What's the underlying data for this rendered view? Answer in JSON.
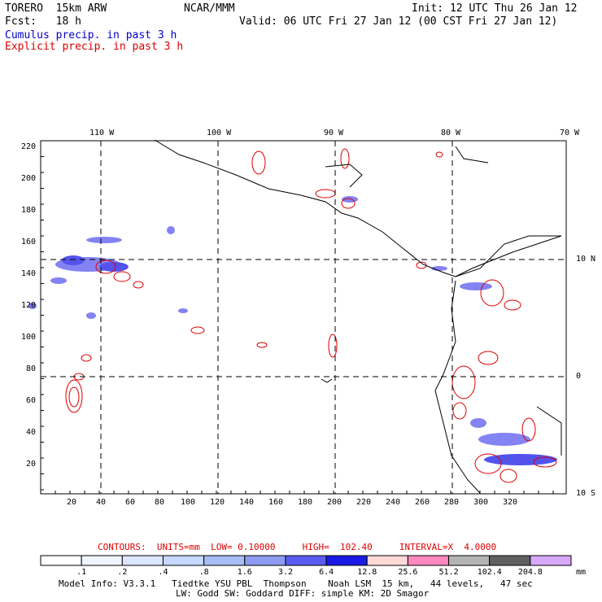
{
  "header": {
    "model": "TORERO  15km ARW",
    "org": "NCAR/MMM",
    "init": "Init: 12 UTC Thu 26 Jan 12",
    "fcst": "Fcst:   18 h",
    "valid": "Valid: 06 UTC Fri 27 Jan 12 (00 CST Fri 27 Jan 12)",
    "cumulus": "Cumulus precip. in past 3 h",
    "explicit": "Explicit precip. in past 3 h"
  },
  "colors": {
    "cumulus": "#0000cc",
    "explicit": "#dd0000",
    "coast": "#000000"
  },
  "map": {
    "lon_labels": [
      "110 W",
      "100 W",
      "90 W",
      "80 W",
      "70 W"
    ],
    "lat_labels": [
      "10 N",
      "0",
      "10 S"
    ],
    "y_ticks": [
      "220",
      "200",
      "180",
      "160",
      "140",
      "120",
      "100",
      "80",
      "60",
      "40",
      "20"
    ],
    "x_ticks": [
      "20",
      "40",
      "60",
      "80",
      "100",
      "120",
      "140",
      "160",
      "180",
      "200",
      "220",
      "240",
      "260",
      "280",
      "300",
      "320"
    ]
  },
  "contours_line": {
    "label": "CONTOURS:  UNITS=mm  LOW= 0.10000     HIGH=  102.40     INTERVAL=X  4.0000"
  },
  "colorbar": {
    "unit": "mm",
    "levels": [
      ".1",
      ".2",
      ".4",
      ".8",
      "1.6",
      "3.2",
      "6.4",
      "12.8",
      "25.6",
      "51.2",
      "102.4",
      "204.8"
    ],
    "colors": [
      "#ffffff",
      "#f0f4ff",
      "#dce6ff",
      "#c6d8ff",
      "#a8bcf5",
      "#8c9cf0",
      "#5a5af0",
      "#1a1ae6",
      "#ffd8d8",
      "#ff88c0",
      "#b4b4b4",
      "#606060",
      "#d8a8f8"
    ]
  },
  "footer": {
    "line1": "Model Info: V3.3.1   Tiedtke YSU PBL  Thompson    Noah LSM  15 km,   44 levels,   47 sec",
    "line2": "LW: Godd SW: Goddard DIFF: simple KM: 2D Smagor"
  }
}
